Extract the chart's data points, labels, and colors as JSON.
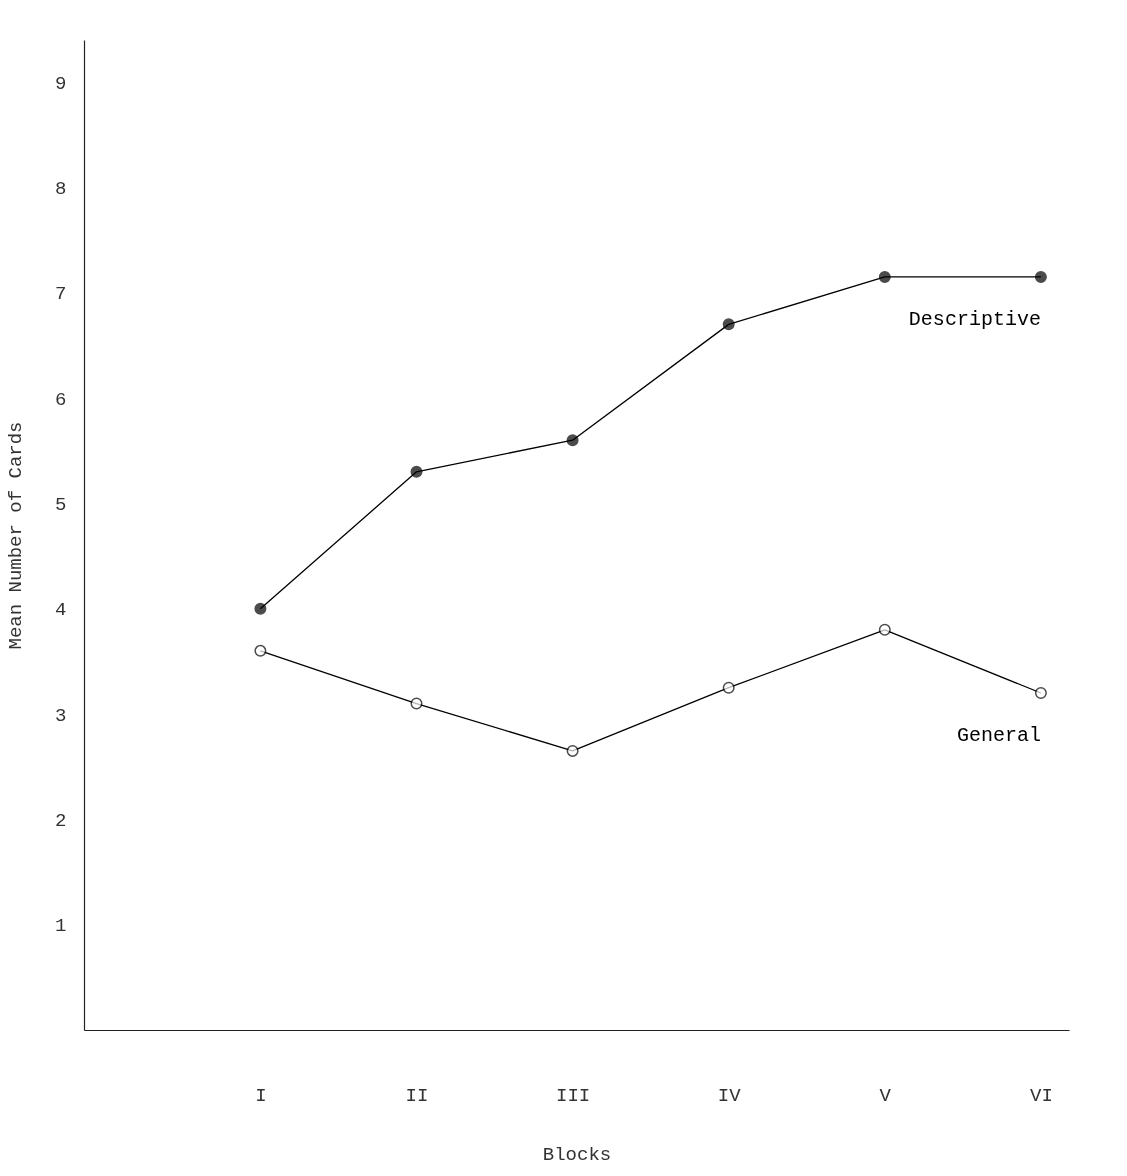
{
  "chart_data": {
    "type": "line",
    "xlabel": "Blocks",
    "ylabel": "Mean Number of Cards",
    "categories": [
      "I",
      "II",
      "III",
      "IV",
      "V",
      "VI"
    ],
    "series": [
      {
        "name": "Descriptive",
        "color": "#000000",
        "values": [
          4.0,
          5.3,
          5.6,
          6.7,
          7.15,
          7.15
        ]
      },
      {
        "name": "General",
        "color": "#000000",
        "values": [
          3.6,
          3.1,
          2.65,
          3.25,
          3.8,
          3.2
        ]
      }
    ],
    "ylim": [
      0,
      9.4
    ],
    "yticks": [
      1,
      2,
      3,
      4,
      5,
      6,
      7,
      8,
      9
    ],
    "grid": false,
    "legend": false,
    "marker": "circle",
    "line_style": "solid"
  }
}
